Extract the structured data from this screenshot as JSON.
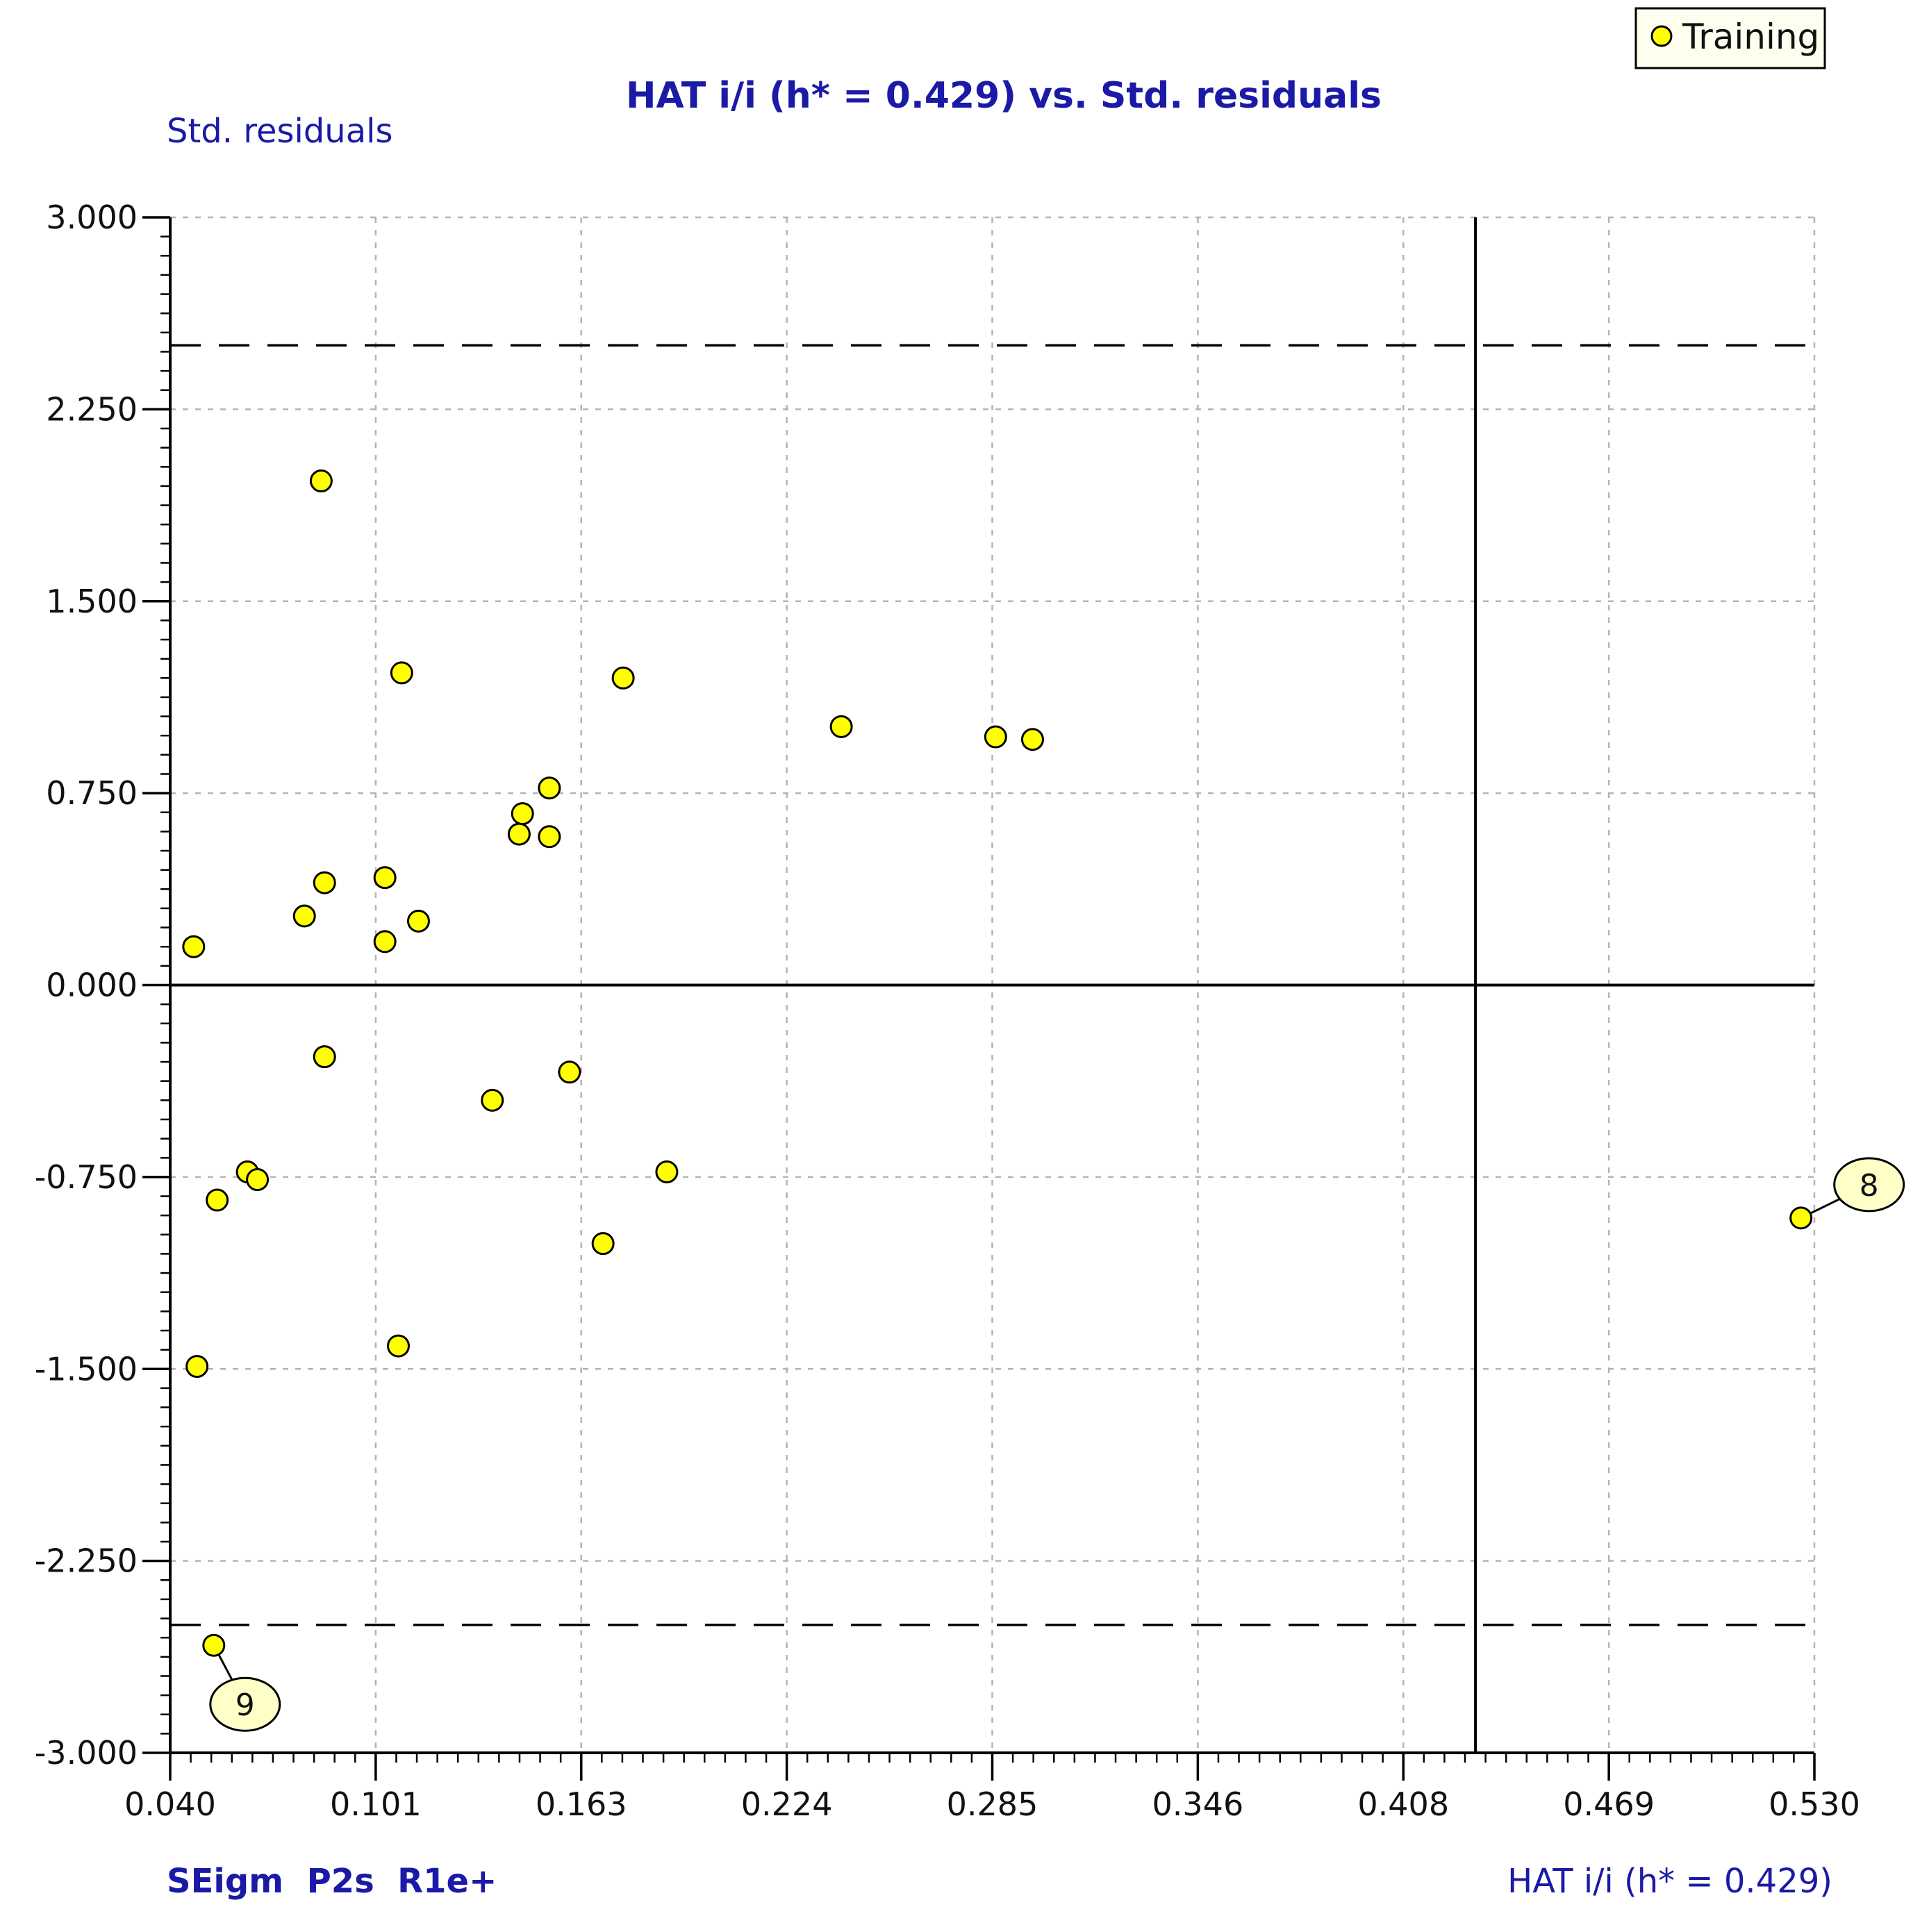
{
  "chart_data": {
    "type": "scatter",
    "title": "HAT i/i (h* = 0.429) vs. Std. residuals",
    "ylabel": "Std. residuals",
    "xlabel": "HAT i/i (h* = 0.429)",
    "model_label": "SEigm  P2s  R1e+",
    "xlim": [
      0.04,
      0.53
    ],
    "ylim": [
      -3.0,
      3.0
    ],
    "x_ticks": [
      "0.040",
      "0.101",
      "0.163",
      "0.224",
      "0.285",
      "0.346",
      "0.408",
      "0.469",
      "0.530"
    ],
    "y_ticks": [
      "3.000",
      "2.250",
      "1.500",
      "0.750",
      "0.000",
      "-0.750",
      "-1.500",
      "-2.250",
      "-3.000"
    ],
    "grid": true,
    "legend": {
      "position": "top-right",
      "entries": [
        "Training"
      ]
    },
    "reference_lines": {
      "h_star": 0.429,
      "residual_upper": 2.5,
      "residual_lower": -2.5
    },
    "series": [
      {
        "name": "Training",
        "color": "#ffff00",
        "points": [
          {
            "x": 0.047,
            "y": 0.15
          },
          {
            "x": 0.085,
            "y": 1.97
          },
          {
            "x": 0.08,
            "y": 0.27
          },
          {
            "x": 0.086,
            "y": 0.4
          },
          {
            "x": 0.104,
            "y": 0.42
          },
          {
            "x": 0.104,
            "y": 0.17
          },
          {
            "x": 0.109,
            "y": 1.22
          },
          {
            "x": 0.114,
            "y": 0.25
          },
          {
            "x": 0.144,
            "y": 0.59
          },
          {
            "x": 0.145,
            "y": 0.67
          },
          {
            "x": 0.153,
            "y": 0.77
          },
          {
            "x": 0.153,
            "y": 0.58
          },
          {
            "x": 0.175,
            "y": 1.2
          },
          {
            "x": 0.24,
            "y": 1.01
          },
          {
            "x": 0.286,
            "y": 0.97
          },
          {
            "x": 0.297,
            "y": 0.96
          },
          {
            "x": 0.086,
            "y": -0.28
          },
          {
            "x": 0.136,
            "y": -0.45
          },
          {
            "x": 0.159,
            "y": -0.34
          },
          {
            "x": 0.063,
            "y": -0.73
          },
          {
            "x": 0.066,
            "y": -0.76
          },
          {
            "x": 0.054,
            "y": -0.84
          },
          {
            "x": 0.188,
            "y": -0.73
          },
          {
            "x": 0.169,
            "y": -1.01
          },
          {
            "x": 0.108,
            "y": -1.41
          },
          {
            "x": 0.048,
            "y": -1.49
          },
          {
            "x": 0.053,
            "y": -2.58,
            "label": "9"
          },
          {
            "x": 0.526,
            "y": -0.91,
            "label": "8"
          }
        ]
      }
    ]
  }
}
